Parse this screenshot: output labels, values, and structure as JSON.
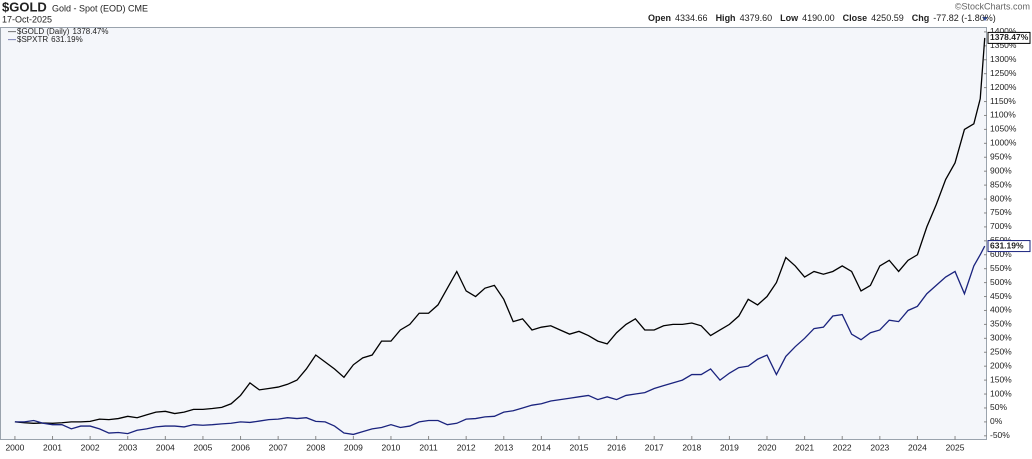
{
  "chart_data": {
    "type": "line",
    "symbol": "$GOLD",
    "description": "Gold - Spot (EOD)",
    "exchange": "CME",
    "date": "17-Oct-2025",
    "quote": [
      {
        "label": "Open",
        "value": "4334.66"
      },
      {
        "label": "High",
        "value": "4379.60"
      },
      {
        "label": "Low",
        "value": "4190.00"
      },
      {
        "label": "Close",
        "value": "4250.59"
      },
      {
        "label": "Chg",
        "value": "-77.82 (-1.80%)"
      }
    ],
    "copyright": "©StockCharts.com",
    "xlim": [
      1999.63,
      2025.85
    ],
    "xticks": [
      2000,
      2001,
      2002,
      2003,
      2004,
      2005,
      2006,
      2007,
      2008,
      2009,
      2010,
      2011,
      2012,
      2013,
      2014,
      2015,
      2016,
      2017,
      2018,
      2019,
      2020,
      2021,
      2022,
      2023,
      2024,
      2025
    ],
    "ylim": [
      -65,
      1414
    ],
    "yticks": [
      {
        "value": -50,
        "label": "-50%"
      },
      {
        "value": 0,
        "label": "0%"
      },
      {
        "value": 50,
        "label": "50%"
      },
      {
        "value": 100,
        "label": "100%"
      },
      {
        "value": 150,
        "label": "150%"
      },
      {
        "value": 200,
        "label": "200%"
      },
      {
        "value": 250,
        "label": "250%"
      },
      {
        "value": 300,
        "label": "300%"
      },
      {
        "value": 350,
        "label": "350%"
      },
      {
        "value": 400,
        "label": "400%"
      },
      {
        "value": 450,
        "label": "450%"
      },
      {
        "value": 500,
        "label": "500%"
      },
      {
        "value": 550,
        "label": "550%"
      },
      {
        "value": 600,
        "label": "600%"
      },
      {
        "value": 650,
        "label": "650%"
      },
      {
        "value": 700,
        "label": "700%"
      },
      {
        "value": 750,
        "label": "750%"
      },
      {
        "value": 800,
        "label": "800%"
      },
      {
        "value": 850,
        "label": "850%"
      },
      {
        "value": 900,
        "label": "900%"
      },
      {
        "value": 950,
        "label": "950%"
      },
      {
        "value": 1000,
        "label": "1000%"
      },
      {
        "value": 1050,
        "label": "1050%"
      },
      {
        "value": 1100,
        "label": "1100%"
      },
      {
        "value": 1150,
        "label": "1150%"
      },
      {
        "value": 1200,
        "label": "1200%"
      },
      {
        "value": 1250,
        "label": "1250%"
      },
      {
        "value": 1300,
        "label": "1300%"
      },
      {
        "value": 1350,
        "label": "1350%"
      },
      {
        "value": 1400,
        "label": "1400%"
      }
    ],
    "grid": false,
    "x": [
      2000,
      2000.25,
      2000.5,
      2000.75,
      2001,
      2001.25,
      2001.5,
      2001.75,
      2002,
      2002.25,
      2002.5,
      2002.75,
      2003,
      2003.25,
      2003.5,
      2003.75,
      2004,
      2004.25,
      2004.5,
      2004.75,
      2005,
      2005.25,
      2005.5,
      2005.75,
      2006,
      2006.25,
      2006.5,
      2006.75,
      2007,
      2007.25,
      2007.5,
      2007.75,
      2008,
      2008.25,
      2008.5,
      2008.75,
      2009,
      2009.25,
      2009.5,
      2009.75,
      2010,
      2010.25,
      2010.5,
      2010.75,
      2011,
      2011.25,
      2011.5,
      2011.75,
      2012,
      2012.25,
      2012.5,
      2012.75,
      2013,
      2013.25,
      2013.5,
      2013.75,
      2014,
      2014.25,
      2014.5,
      2014.75,
      2015,
      2015.25,
      2015.5,
      2015.75,
      2016,
      2016.25,
      2016.5,
      2016.75,
      2017,
      2017.25,
      2017.5,
      2017.75,
      2018,
      2018.25,
      2018.5,
      2018.75,
      2019,
      2019.25,
      2019.5,
      2019.75,
      2020,
      2020.25,
      2020.5,
      2020.75,
      2021,
      2021.25,
      2021.5,
      2021.75,
      2022,
      2022.25,
      2022.5,
      2022.75,
      2023,
      2023.25,
      2023.5,
      2023.75,
      2024,
      2024.25,
      2024.5,
      2024.75,
      2025,
      2025.25,
      2025.5,
      2025.67,
      2025.79
    ],
    "series": [
      {
        "name": "$GOLD (Daily)",
        "color": "#000000",
        "end_value": 1378.47,
        "end_label": "1378.47%",
        "values": [
          0,
          -3,
          -5,
          -4,
          -5,
          -3,
          0,
          0,
          2,
          10,
          8,
          12,
          20,
          15,
          25,
          35,
          38,
          30,
          35,
          45,
          45,
          48,
          52,
          65,
          95,
          140,
          115,
          120,
          125,
          135,
          150,
          190,
          240,
          215,
          190,
          160,
          205,
          230,
          240,
          290,
          290,
          330,
          350,
          390,
          390,
          420,
          480,
          540,
          470,
          450,
          480,
          490,
          440,
          360,
          370,
          330,
          340,
          345,
          330,
          315,
          325,
          310,
          290,
          280,
          320,
          350,
          370,
          330,
          330,
          345,
          350,
          350,
          355,
          345,
          310,
          330,
          350,
          380,
          440,
          420,
          450,
          500,
          590,
          560,
          520,
          540,
          530,
          540,
          560,
          540,
          470,
          490,
          560,
          580,
          540,
          580,
          600,
          700,
          780,
          870,
          930,
          1050,
          1070,
          1160,
          1378.47
        ]
      },
      {
        "name": "$SPXTR",
        "color": "#1a237e",
        "end_value": 631.19,
        "end_label": "631.19%",
        "values": [
          0,
          0,
          5,
          -5,
          -10,
          -10,
          -25,
          -15,
          -15,
          -25,
          -40,
          -38,
          -42,
          -30,
          -25,
          -18,
          -15,
          -15,
          -18,
          -10,
          -12,
          -10,
          -7,
          -5,
          0,
          -2,
          3,
          8,
          10,
          15,
          12,
          15,
          2,
          0,
          -15,
          -40,
          -45,
          -35,
          -25,
          -20,
          -10,
          -20,
          -15,
          0,
          5,
          5,
          -10,
          -5,
          10,
          12,
          18,
          20,
          35,
          40,
          50,
          60,
          65,
          75,
          80,
          85,
          90,
          95,
          80,
          90,
          80,
          95,
          100,
          105,
          120,
          130,
          140,
          150,
          170,
          170,
          190,
          150,
          175,
          195,
          200,
          225,
          240,
          170,
          235,
          270,
          300,
          335,
          340,
          380,
          385,
          315,
          295,
          320,
          330,
          365,
          360,
          400,
          415,
          460,
          490,
          520,
          540,
          460,
          560,
          600,
          631.19
        ]
      }
    ]
  }
}
